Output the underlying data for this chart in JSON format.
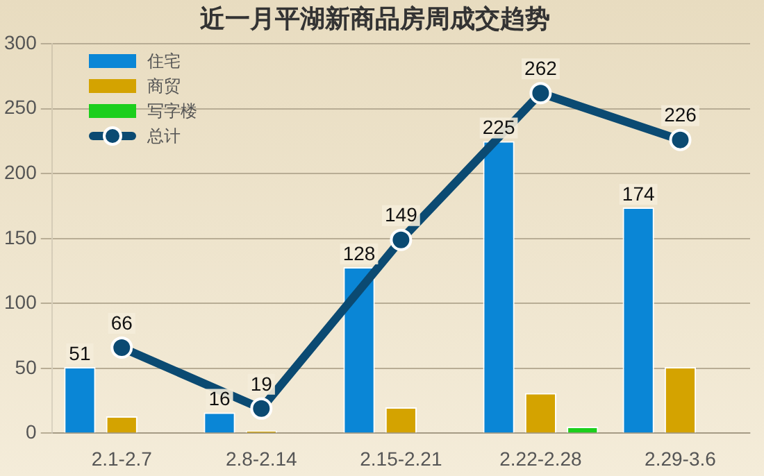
{
  "chart_data": {
    "type": "bar",
    "title": "近一月平湖新商品房周成交趋势",
    "categories": [
      "2.1-2.7",
      "2.8-2.14",
      "2.15-2.21",
      "2.22-2.28",
      "2.29-3.6"
    ],
    "series": [
      {
        "name": "住宅",
        "color": "#0a86d6",
        "values": [
          51,
          16,
          128,
          225,
          174
        ],
        "value_labels": [
          "51",
          "16",
          "128",
          "225",
          "174"
        ]
      },
      {
        "name": "商贸",
        "color": "#d4a300",
        "values": [
          13,
          2,
          20,
          31,
          51
        ]
      },
      {
        "name": "写字楼",
        "color": "#1ccf1c",
        "values": [
          0,
          0,
          0,
          5,
          0
        ]
      },
      {
        "name": "总计",
        "type": "line",
        "color": "#0b4a72",
        "values": [
          66,
          19,
          149,
          262,
          226
        ],
        "value_labels": [
          "66",
          "19",
          "149",
          "262",
          "226"
        ]
      }
    ],
    "ylim": [
      0,
      300
    ],
    "yticks": [
      0,
      50,
      100,
      150,
      200,
      250,
      300
    ],
    "grid": "y",
    "legend": "top left",
    "marker": "circle",
    "line_style": "solid"
  }
}
